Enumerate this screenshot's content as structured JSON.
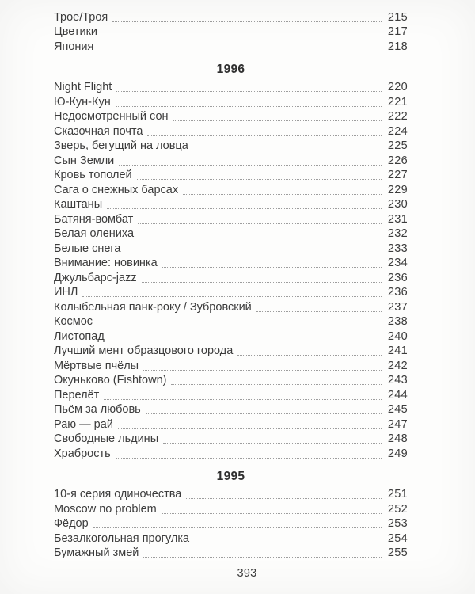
{
  "toc": {
    "folio": "393",
    "sections": [
      {
        "year": null,
        "entries": [
          {
            "title": "Трое/Троя",
            "page": "215"
          },
          {
            "title": "Цветики",
            "page": "217"
          },
          {
            "title": "Япония",
            "page": "218"
          }
        ]
      },
      {
        "year": "1996",
        "entries": [
          {
            "title": "Night Flight",
            "page": "220"
          },
          {
            "title": "Ю-Кун-Кун",
            "page": "221"
          },
          {
            "title": "Недосмотренный сон",
            "page": "222"
          },
          {
            "title": "Сказочная почта",
            "page": "224"
          },
          {
            "title": "Зверь, бегущий на ловца",
            "page": "225"
          },
          {
            "title": "Сын Земли",
            "page": "226"
          },
          {
            "title": "Кровь тополей",
            "page": "227"
          },
          {
            "title": "Сага о снежных барсах",
            "page": "229"
          },
          {
            "title": "Каштаны",
            "page": "230"
          },
          {
            "title": "Батяня-вомбат",
            "page": "231"
          },
          {
            "title": "Белая олениха",
            "page": "232"
          },
          {
            "title": "Белые снега",
            "page": "233"
          },
          {
            "title": "Внимание: новинка",
            "page": "234"
          },
          {
            "title": "Джульбарс-jazz",
            "page": "236"
          },
          {
            "title": "ИНЛ",
            "page": "236"
          },
          {
            "title": "Колыбельная панк-року / Зубровский",
            "page": "237"
          },
          {
            "title": "Космос",
            "page": "238"
          },
          {
            "title": "Листопад",
            "page": "240"
          },
          {
            "title": "Лучший мент образцового города",
            "page": "241"
          },
          {
            "title": "Мёртвые пчёлы",
            "page": "242"
          },
          {
            "title": "Окуньково (Fishtown)",
            "page": "243"
          },
          {
            "title": "Перелёт",
            "page": "244"
          },
          {
            "title": "Пьём за любовь",
            "page": "245"
          },
          {
            "title": "Раю — рай",
            "page": "247"
          },
          {
            "title": "Свободные льдины",
            "page": "248"
          },
          {
            "title": "Храбрость",
            "page": "249"
          }
        ]
      },
      {
        "year": "1995",
        "entries": [
          {
            "title": "10-я серия одиночества",
            "page": "251"
          },
          {
            "title": "Moscow no problem",
            "page": "252"
          },
          {
            "title": "Фёдор",
            "page": "253"
          },
          {
            "title": "Безалкогольная прогулка",
            "page": "254"
          },
          {
            "title": "Бумажный змей",
            "page": "255"
          }
        ]
      }
    ]
  }
}
